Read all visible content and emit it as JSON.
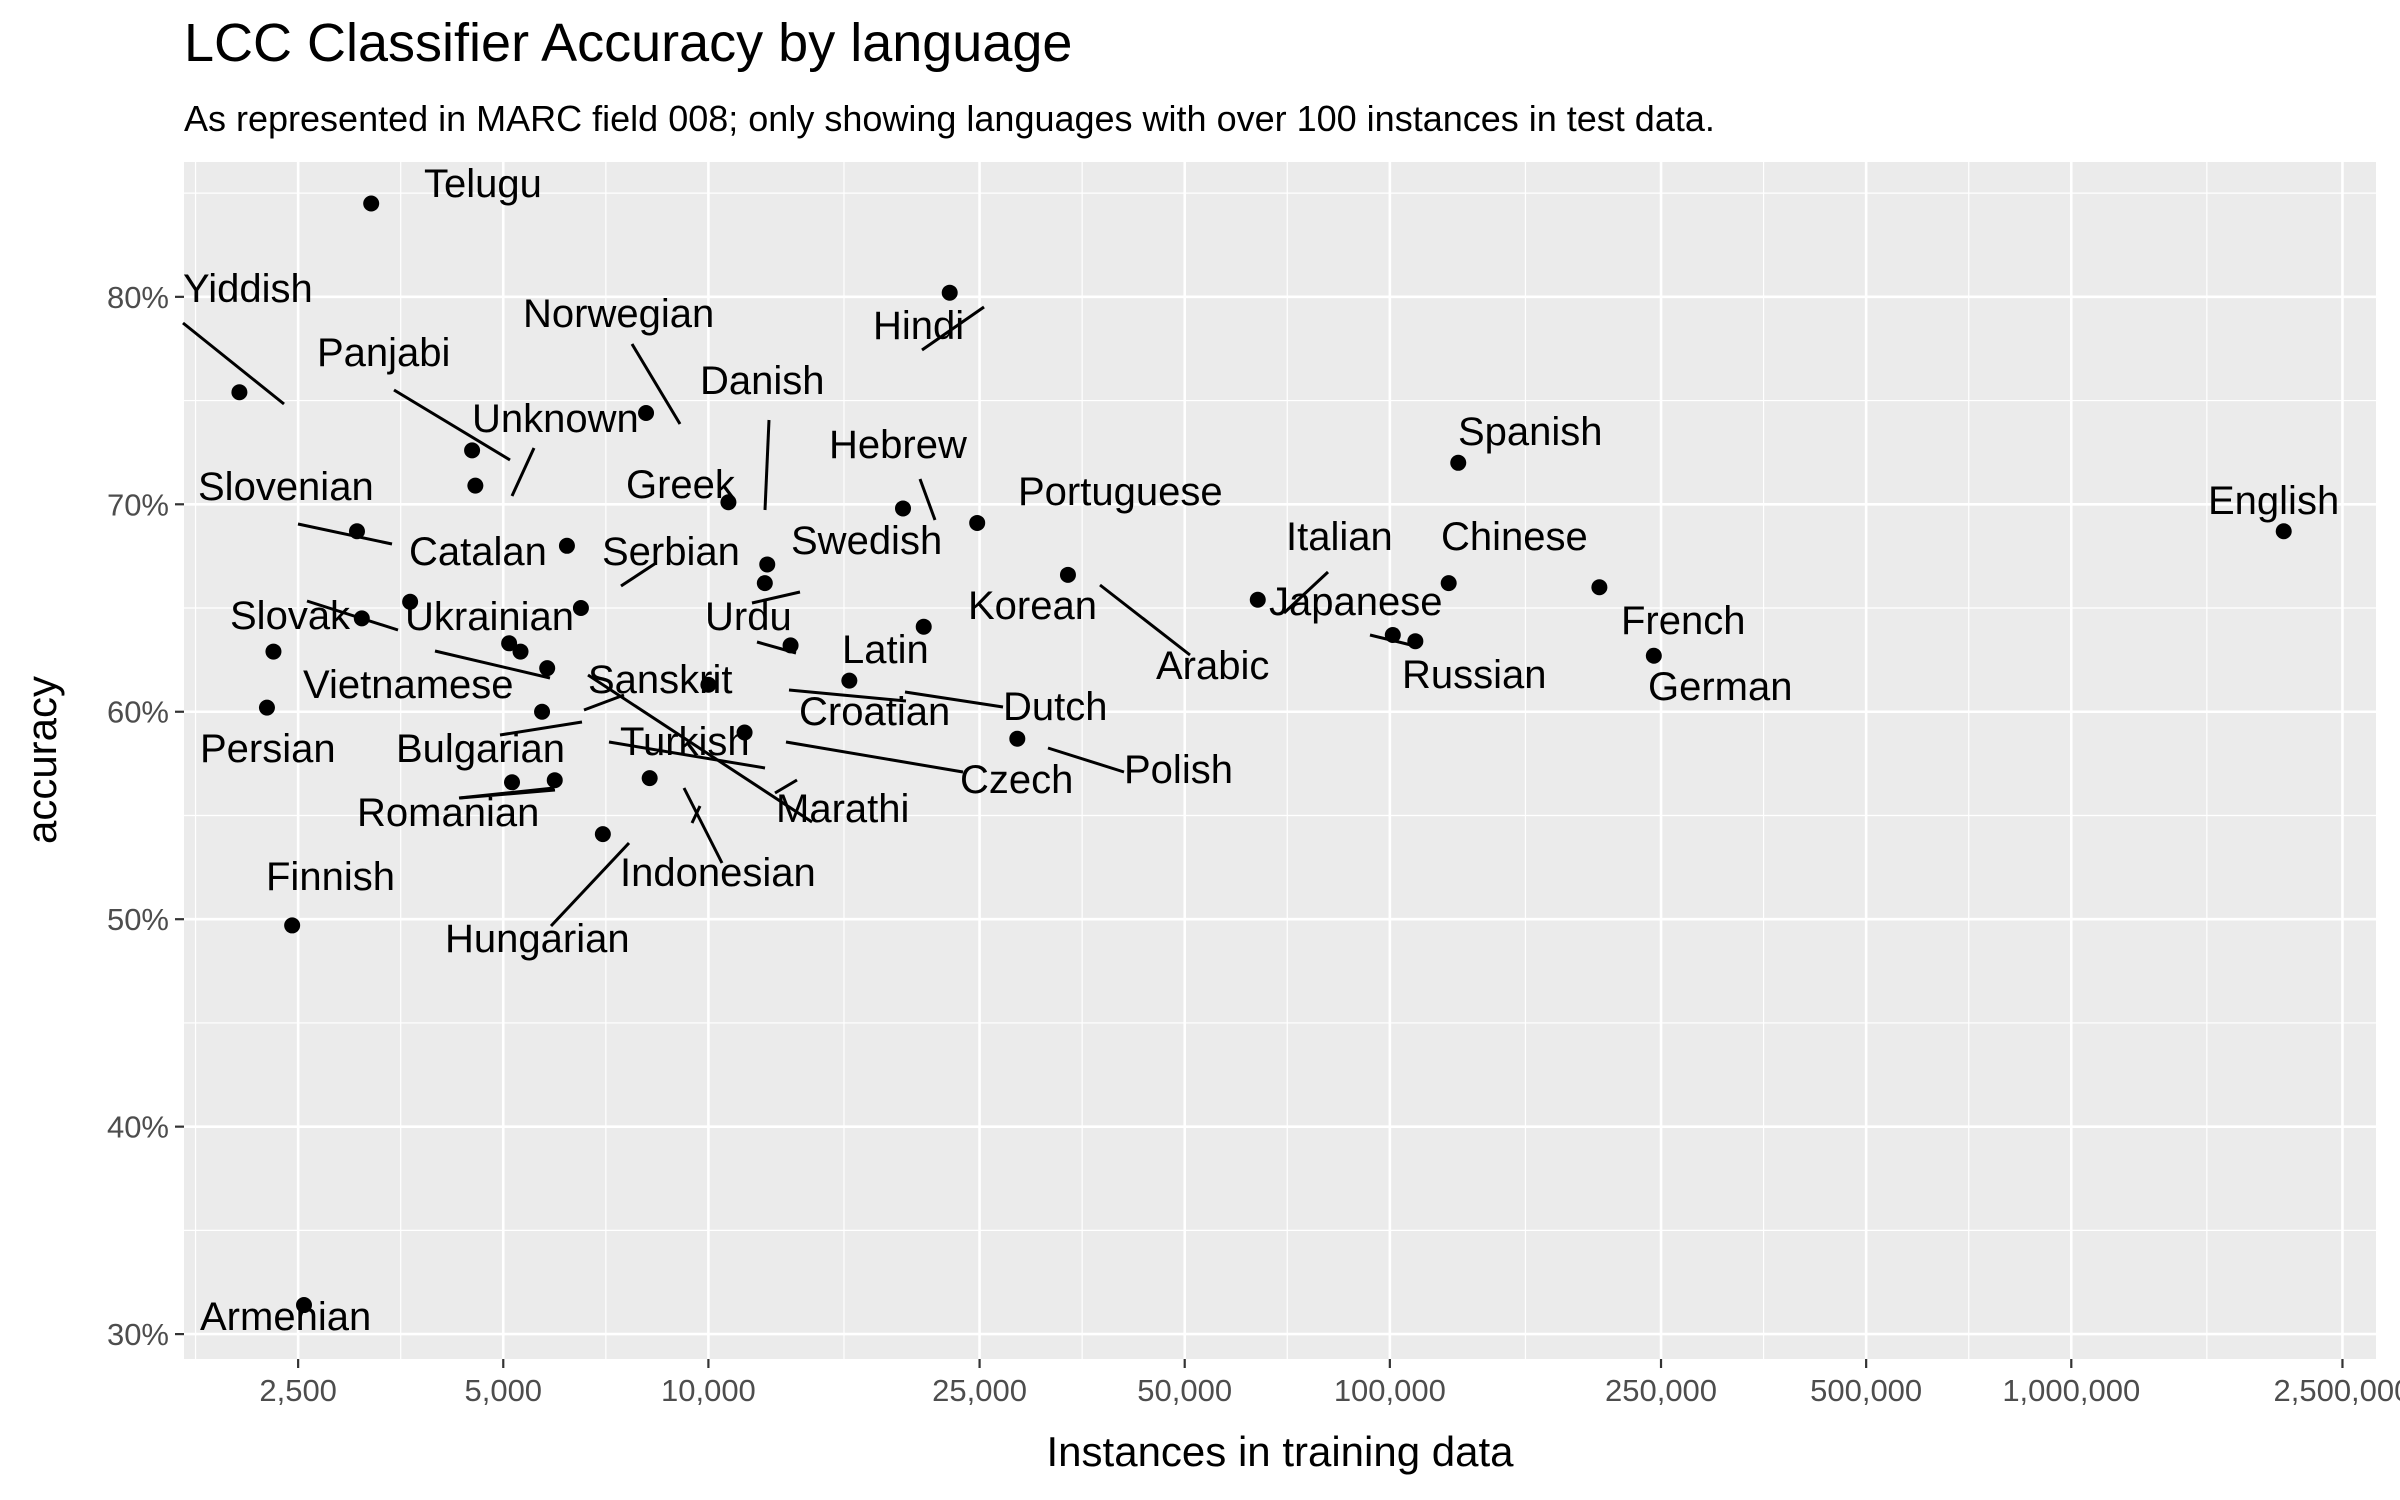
{
  "title": "LCC Classifier Accuracy by language",
  "subtitle": "As represented in MARC field 008; only showing languages with over 100 instances in test data.",
  "chart_data": {
    "type": "scatter",
    "title": "LCC Classifier Accuracy by language",
    "subtitle": "As represented in MARC field 008; only showing languages with over 100 instances in test data.",
    "xlabel": "Instances in training data",
    "ylabel": "accuracy",
    "x_scale": "log10",
    "xlim": [
      1700,
      2800000
    ],
    "ylim": [
      0.288,
      0.865
    ],
    "x_ticks": [
      2500,
      5000,
      10000,
      25000,
      50000,
      100000,
      250000,
      500000,
      1000000,
      2500000
    ],
    "x_tick_labels": [
      "2,500",
      "5,000",
      "10,000",
      "25,000",
      "50,000",
      "100,000",
      "250,000",
      "500,000",
      "1,000,000",
      "2,500,000"
    ],
    "y_ticks": [
      0.3,
      0.4,
      0.5,
      0.6,
      0.7,
      0.8
    ],
    "y_tick_labels": [
      "30%",
      "40%",
      "50%",
      "60%",
      "70%",
      "80%"
    ],
    "grid": true,
    "legend": "none",
    "points": [
      {
        "label": "Telugu",
        "x": 3200,
        "y": 0.845
      },
      {
        "label": "Hindi",
        "x": 22600,
        "y": 0.802
      },
      {
        "label": "Yiddish",
        "x": 2050,
        "y": 0.754
      },
      {
        "label": "Norwegian",
        "x": 8100,
        "y": 0.744
      },
      {
        "label": "Panjabi",
        "x": 4500,
        "y": 0.726
      },
      {
        "label": "Spanish",
        "x": 126000,
        "y": 0.72
      },
      {
        "label": "Unknown",
        "x": 4550,
        "y": 0.709
      },
      {
        "label": "Danish",
        "x": 10700,
        "y": 0.701
      },
      {
        "label": "Hebrew",
        "x": 19300,
        "y": 0.698
      },
      {
        "label": "Portuguese",
        "x": 24800,
        "y": 0.691
      },
      {
        "label": "English",
        "x": 2050000,
        "y": 0.687
      },
      {
        "label": "Slovenian",
        "x": 3050,
        "y": 0.687
      },
      {
        "label": "Greek",
        "x": 6200,
        "y": 0.68
      },
      {
        "label": "Swedish",
        "x": 12200,
        "y": 0.671
      },
      {
        "label": "Arabic",
        "x": 33700,
        "y": 0.666
      },
      {
        "label": "Chinese",
        "x": 122000,
        "y": 0.662
      },
      {
        "label": "French",
        "x": 203000,
        "y": 0.66
      },
      {
        "label": "Urdu",
        "x": 12100,
        "y": 0.662
      },
      {
        "label": "Italian",
        "x": 64000,
        "y": 0.654
      },
      {
        "label": "Catalan",
        "x": 3650,
        "y": 0.653
      },
      {
        "label": "Serbian",
        "x": 6500,
        "y": 0.65
      },
      {
        "label": "Slovak",
        "x": 3100,
        "y": 0.645
      },
      {
        "label": "Korean",
        "x": 20700,
        "y": 0.641
      },
      {
        "label": "Japanese",
        "x": 101000,
        "y": 0.637
      },
      {
        "label": "Russian",
        "x": 109000,
        "y": 0.634
      },
      {
        "label": "Ukrainian",
        "x": 5100,
        "y": 0.633
      },
      {
        "label": "Latin",
        "x": 13200,
        "y": 0.632
      },
      {
        "label": "Slovak",
        "x": 2300,
        "y": 0.629
      },
      {
        "label": "Ukrainian",
        "x": 5300,
        "y": 0.629
      },
      {
        "label": "German",
        "x": 244000,
        "y": 0.627
      },
      {
        "label": "Sanskrit",
        "x": 5800,
        "y": 0.621
      },
      {
        "label": "Dutch",
        "x": 16100,
        "y": 0.615
      },
      {
        "label": "Croatian",
        "x": 10000,
        "y": 0.613
      },
      {
        "label": "Vietnamese",
        "x": 2250,
        "y": 0.602
      },
      {
        "label": "Bulgarian",
        "x": 5700,
        "y": 0.6
      },
      {
        "label": "Croatian",
        "x": 11300,
        "y": 0.59
      },
      {
        "label": "Polish",
        "x": 28400,
        "y": 0.587
      },
      {
        "label": "Turkish",
        "x": 8200,
        "y": 0.568
      },
      {
        "label": "Romanian",
        "x": 5950,
        "y": 0.567
      },
      {
        "label": "Romanian",
        "x": 5150,
        "y": 0.566
      },
      {
        "label": "Hungarian",
        "x": 7000,
        "y": 0.541
      },
      {
        "label": "Finnish",
        "x": 2450,
        "y": 0.497
      },
      {
        "label": "Armenian",
        "x": 2550,
        "y": 0.314
      }
    ],
    "labels": [
      "Telugu",
      "Yiddish",
      "Hindi",
      "Norwegian",
      "Panjabi",
      "Danish",
      "Unknown",
      "Spanish",
      "Hebrew",
      "Slovenian",
      "Greek",
      "Portuguese",
      "English",
      "Italian",
      "Chinese",
      "Catalan",
      "Serbian",
      "Swedish",
      "Slovak",
      "Ukrainian",
      "Urdu",
      "Japanese",
      "French",
      "Korean",
      "Latin",
      "Arabic",
      "Sanskrit",
      "Vietnamese",
      "Russian",
      "Dutch",
      "German",
      "Croatian",
      "Persian",
      "Bulgarian",
      "Turkish",
      "Czech",
      "Polish",
      "Marathi",
      "Romanian",
      "Indonesian",
      "Finnish",
      "Hungarian",
      "Armenian"
    ]
  }
}
